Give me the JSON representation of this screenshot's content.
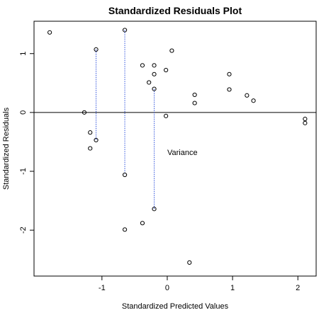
{
  "chart_data": {
    "type": "scatter",
    "title": "Standardized Residuals Plot",
    "xlabel": "Standardized Predicted Values",
    "ylabel": "Standardized Residuals",
    "annotation": "Variance",
    "color": "#000000",
    "x": [
      -1.8,
      -1.09,
      -0.65,
      -1.27,
      -1.18,
      -1.09,
      -1.18,
      -0.65,
      -0.65,
      -0.38,
      -0.2,
      -0.2,
      -0.28,
      -0.2,
      -0.2,
      -0.38,
      -0.02,
      0.07,
      -0.02,
      0.42,
      0.42,
      0.95,
      0.95,
      1.22,
      1.32,
      2.11,
      2.11,
      0.34
    ],
    "values": [
      1.36,
      1.07,
      1.4,
      0.0,
      -0.34,
      -0.47,
      -0.61,
      -1.06,
      -1.99,
      0.8,
      0.8,
      0.65,
      0.51,
      0.4,
      -1.64,
      -1.88,
      0.72,
      1.05,
      -0.06,
      0.3,
      0.16,
      0.65,
      0.39,
      0.29,
      0.2,
      -0.11,
      -0.18,
      -2.55
    ],
    "hline": 0,
    "variance_color": "#3355dd",
    "variance_lines": [
      {
        "x": -1.09,
        "y": [
          1.07,
          -0.47
        ]
      },
      {
        "x": -0.65,
        "y": [
          1.4,
          -1.06
        ]
      },
      {
        "x": -0.2,
        "y": [
          0.4,
          -1.64
        ]
      }
    ],
    "xlim": [
      -2.04,
      2.28
    ],
    "ylim": [
      -2.78,
      1.55
    ],
    "xticks": [
      -1,
      0,
      1,
      2
    ],
    "yticks": [
      -2,
      -1,
      0,
      1
    ]
  }
}
